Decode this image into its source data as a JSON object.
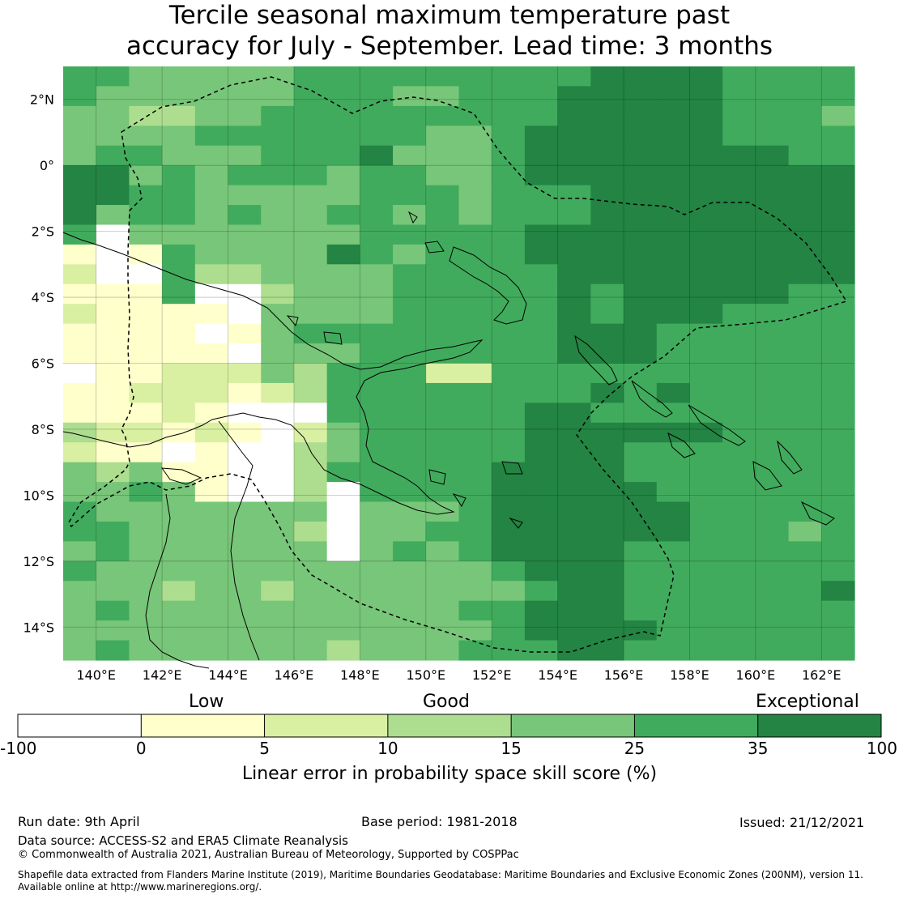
{
  "title_line1": "Tercile seasonal maximum temperature past",
  "title_line2": "accuracy for July - September. Lead time: 3 months",
  "lat_ticks": [
    "2°N",
    "0°",
    "2°S",
    "4°S",
    "6°S",
    "8°S",
    "10°S",
    "12°S",
    "14°S"
  ],
  "lon_ticks": [
    "140°E",
    "142°E",
    "144°E",
    "146°E",
    "148°E",
    "150°E",
    "152°E",
    "154°E",
    "156°E",
    "158°E",
    "160°E",
    "162°E"
  ],
  "colorbar": {
    "category_labels": [
      "Low",
      "Good",
      "Exceptional"
    ],
    "tick_labels": [
      "-100",
      "0",
      "5",
      "10",
      "15",
      "25",
      "35",
      "100"
    ],
    "colors": [
      "#ffffff",
      "#ffffcc",
      "#d9f0a3",
      "#addd8e",
      "#78c679",
      "#41ab5d",
      "#238443"
    ],
    "title": "Linear error in probability space skill score (%)"
  },
  "footer": {
    "run_date": "Run date: 9th April",
    "base_period": "Base period: 1981-2018",
    "issued": "Issued: 21/12/2021",
    "data_source": "Data source: ACCESS-S2 and ERA5 Climate Reanalysis",
    "copyright": "© Commonwealth of Australia 2021, Australian Bureau of Meteorology, Supported by COSPPac",
    "shapefile_line1": "Shapefile data extracted from Flanders Marine Institute (2019), Maritime Boundaries Geodatabase: Maritime Boundaries and Exclusive Economic Zones (200NM), version 11.",
    "shapefile_line2": "Available online at http://www.marineregions.org/."
  },
  "map_data": {
    "lon_range": [
      139,
      163
    ],
    "lat_range": [
      -15,
      3
    ],
    "cell_size_deg": 0.8,
    "skill_grid_categories_rows_north_to_south": [
      "554444455555555566665555",
      "544444455544555666665555",
      "443344555555555666665554",
      "444455555554456666665555",
      "455444555644456666666655",
      "664545554554456666666666",
      "665544444555455566666666",
      "645545445545455566666666",
      "504444444555556666666666",
      "101544446545556666666666",
      "200533444455555666666666",
      "111500344455555656666655",
      "211110444455555656665555",
      "111101455555555666555555",
      "111110444555555666555555",
      "011222435552255555555555",
      "112221235555555565655555",
      "111210005555556655555555",
      "322121024555556666665555",
      "211010034555556665555555",
      "434110035555566665555555",
      "445410030555566666555555",
      "544444440444566666655555",
      "554444430445566666655545",
      "454444440454566665555555",
      "544444444444456665555555",
      "444344344444445665555556",
      "454444444444556665555555",
      "444444444444456666555555",
      "454444443444555665555555"
    ]
  }
}
